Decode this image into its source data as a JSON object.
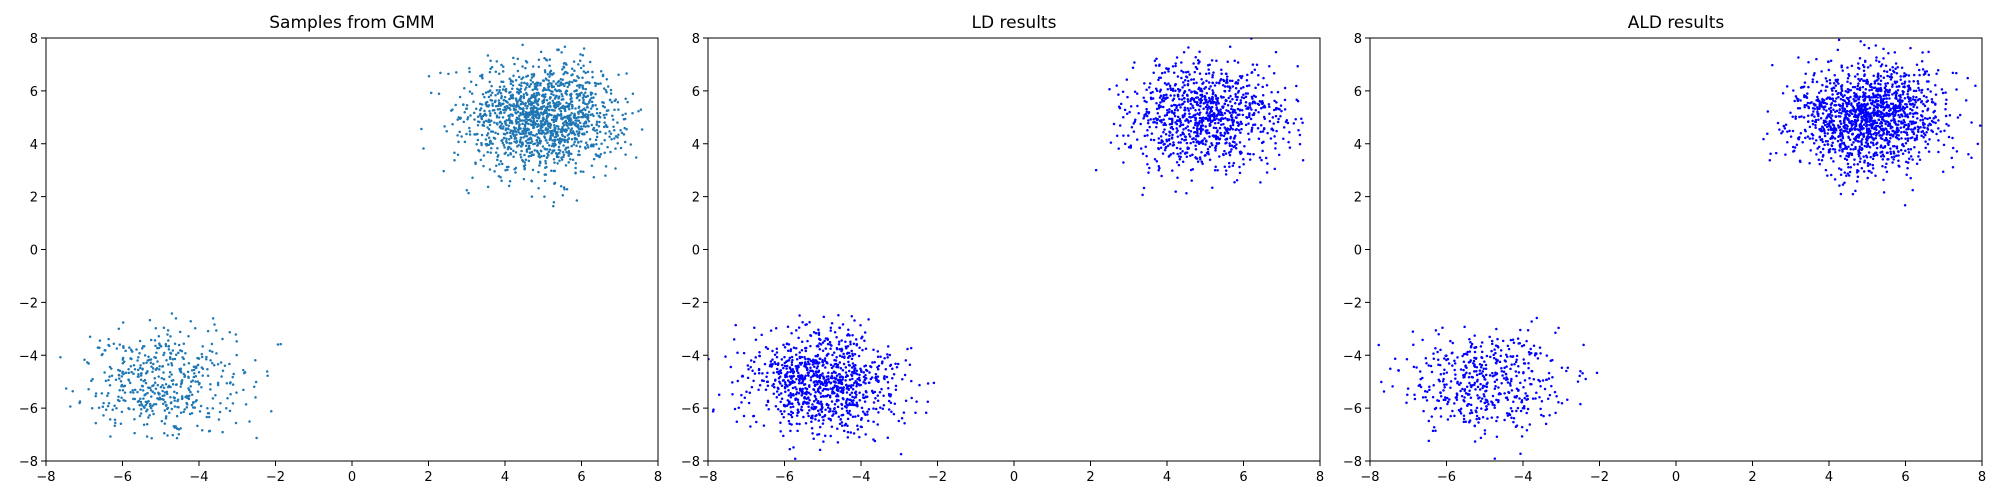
{
  "chart_data": [
    {
      "type": "scatter",
      "title": "Samples from GMM",
      "color": "#1f77b4",
      "xlim": [
        -8,
        8
      ],
      "ylim": [
        -8,
        8
      ],
      "xticks": [
        "−8",
        "−6",
        "−4",
        "−2",
        "0",
        "2",
        "4",
        "6",
        "8"
      ],
      "yticks": [
        "−8",
        "−6",
        "−4",
        "−2",
        "0",
        "2",
        "4",
        "6",
        "8"
      ],
      "grid": false,
      "clusters": [
        {
          "center": [
            5,
            5
          ],
          "std": [
            1.0,
            1.0
          ],
          "n": 1500,
          "xrange": [
            1.7,
            8.0
          ],
          "yrange": [
            1.6,
            8.0
          ]
        },
        {
          "center": [
            -5,
            -5
          ],
          "std": [
            1.0,
            1.0
          ],
          "n": 500,
          "xrange": [
            -8.0,
            -1.8
          ],
          "yrange": [
            -7.2,
            -2.4
          ]
        }
      ]
    },
    {
      "type": "scatter",
      "title": "LD results",
      "color": "#0000ff",
      "xlim": [
        -8,
        8
      ],
      "ylim": [
        -8,
        8
      ],
      "xticks": [
        "−8",
        "−6",
        "−4",
        "−2",
        "0",
        "2",
        "4",
        "6",
        "8"
      ],
      "yticks": [
        "−8",
        "−6",
        "−4",
        "−2",
        "0",
        "2",
        "4",
        "6",
        "8"
      ],
      "grid": false,
      "clusters": [
        {
          "center": [
            5,
            5
          ],
          "std": [
            1.0,
            1.0
          ],
          "n": 1000,
          "xrange": [
            2.0,
            8.0
          ],
          "yrange": [
            1.3,
            8.0
          ]
        },
        {
          "center": [
            -5,
            -5
          ],
          "std": [
            1.0,
            1.0
          ],
          "n": 1000,
          "xrange": [
            -8.0,
            -1.3
          ],
          "yrange": [
            -8.0,
            -1.9
          ]
        }
      ]
    },
    {
      "type": "scatter",
      "title": "ALD results",
      "color": "#0000ff",
      "xlim": [
        -8,
        8
      ],
      "ylim": [
        -8,
        8
      ],
      "xticks": [
        "−8",
        "−6",
        "−4",
        "−2",
        "0",
        "2",
        "4",
        "6",
        "8"
      ],
      "yticks": [
        "−8",
        "−6",
        "−4",
        "−2",
        "0",
        "2",
        "4",
        "6",
        "8"
      ],
      "grid": false,
      "clusters": [
        {
          "center": [
            5,
            5
          ],
          "std": [
            1.0,
            1.0
          ],
          "n": 1500,
          "xrange": [
            1.8,
            8.0
          ],
          "yrange": [
            1.3,
            8.0
          ]
        },
        {
          "center": [
            -5,
            -5
          ],
          "std": [
            1.0,
            1.0
          ],
          "n": 500,
          "xrange": [
            -8.0,
            -1.6
          ],
          "yrange": [
            -8.0,
            -2.5
          ]
        }
      ]
    }
  ]
}
